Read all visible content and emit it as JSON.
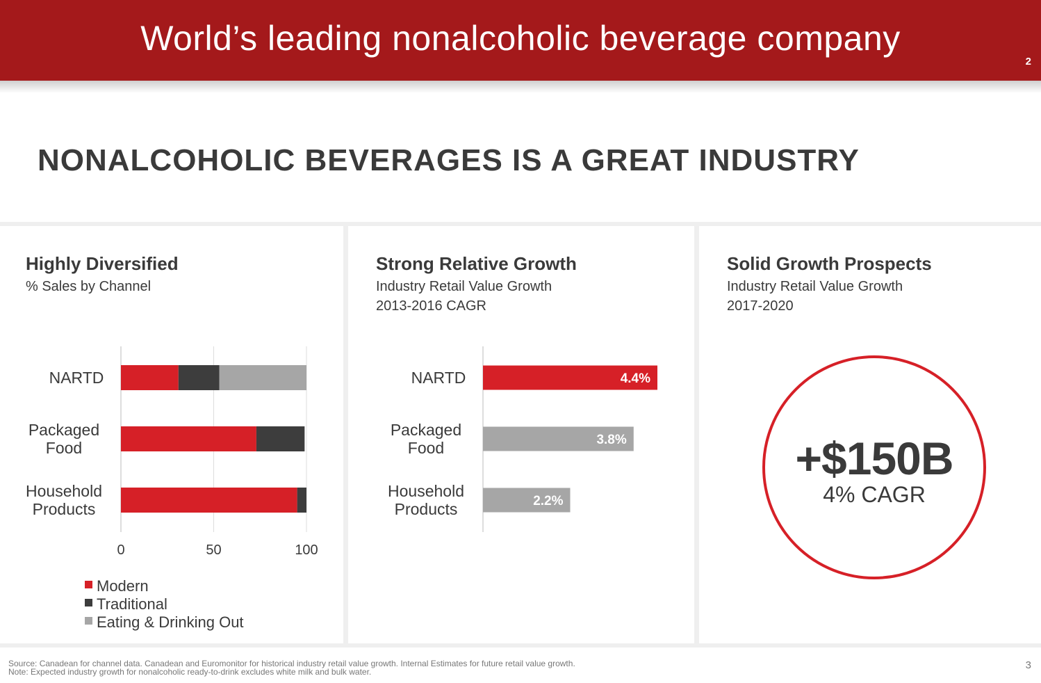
{
  "banner": {
    "title": "World’s leading nonalcoholic beverage company",
    "page": "2"
  },
  "headline": "NONALCOHOLIC BEVERAGES IS A GREAT INDUSTRY",
  "panels": [
    {
      "title": "Highly Diversified",
      "subtitle1": "% Sales by Channel",
      "subtitle2": ""
    },
    {
      "title": "Strong Relative Growth",
      "subtitle1": "Industry Retail Value Growth",
      "subtitle2": "2013-2016 CAGR"
    },
    {
      "title": "Solid Growth Prospects",
      "subtitle1": "Industry Retail Value Growth",
      "subtitle2": "2017-2020"
    }
  ],
  "prospects": {
    "value": "+$150B",
    "caption": "4% CAGR"
  },
  "footer": {
    "line1": "Source: Canadean for channel data.  Canadean and Euromonitor for historical industry retail value growth. Internal Estimates for future retail value growth.",
    "line2": "Note: Expected industry growth for nonalcoholic ready-to-drink excludes white milk and bulk water.",
    "page": "3"
  },
  "colors": {
    "red": "#d62027",
    "dark": "#3d3d3d",
    "gray": "#a6a6a6",
    "banner": "#a4191b"
  },
  "chart_data": [
    {
      "type": "bar",
      "orientation": "horizontal",
      "stacked": true,
      "title": "Highly Diversified",
      "subtitle": "% Sales by Channel",
      "categories": [
        [
          "NARTD"
        ],
        [
          "Packaged",
          "Food"
        ],
        [
          "Household",
          "Products"
        ]
      ],
      "series": [
        {
          "name": "Modern",
          "color": "#d62027",
          "values": [
            31,
            73,
            95
          ]
        },
        {
          "name": "Traditional",
          "color": "#3d3d3d",
          "values": [
            22,
            26,
            5
          ]
        },
        {
          "name": "Eating & Drinking Out",
          "color": "#a6a6a6",
          "values": [
            47,
            0,
            0
          ]
        }
      ],
      "xlim": [
        0,
        100
      ],
      "xticks": [
        0,
        50,
        100
      ],
      "grid": true,
      "legend": "bottom-left"
    },
    {
      "type": "bar",
      "orientation": "horizontal",
      "title": "Strong Relative Growth",
      "subtitle": "Industry Retail Value Growth 2013-2016 CAGR",
      "categories": [
        [
          "NARTD"
        ],
        [
          "Packaged",
          "Food"
        ],
        [
          "Household",
          "Products"
        ]
      ],
      "values": [
        4.4,
        3.8,
        2.2
      ],
      "labels": [
        "4.4%",
        "3.8%",
        "2.2%"
      ],
      "colors": [
        "#d62027",
        "#a6a6a6",
        "#a6a6a6"
      ],
      "xlim": [
        0,
        4.4
      ]
    }
  ]
}
